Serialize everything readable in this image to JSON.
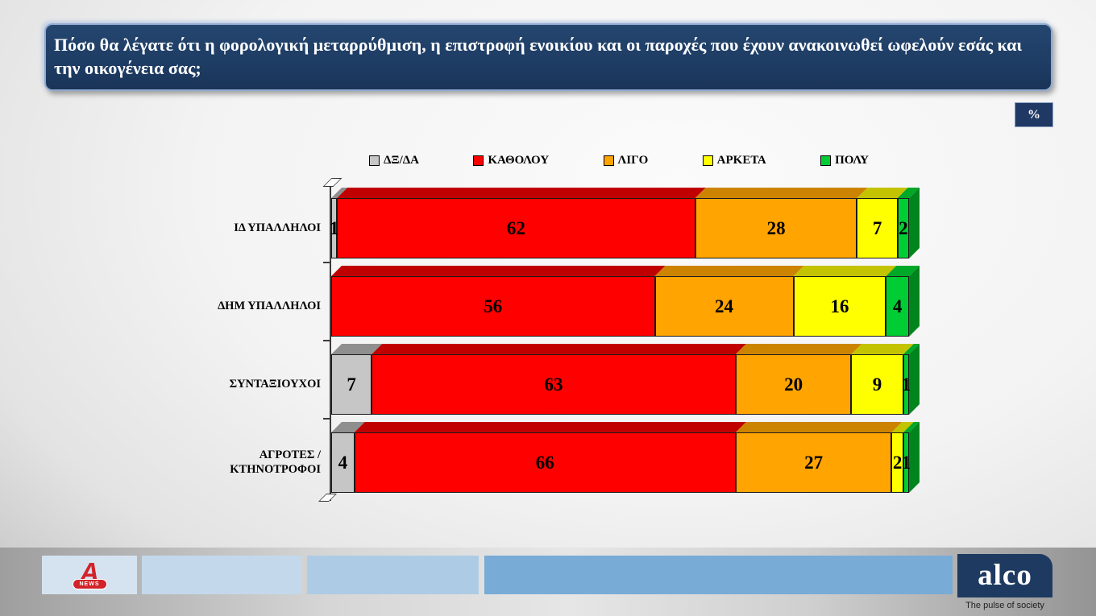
{
  "title": "Πόσο θα λέγατε ότι η φορολογική μεταρρύθμιση, η επιστροφή ενοικίου και  οι παροχές που έχουν ανακοινωθεί ωφελούν εσάς  και την οικογένεια σας;",
  "percent_badge": "%",
  "chart_data": {
    "type": "bar",
    "stacked": true,
    "orientation": "horizontal",
    "unit": "%",
    "title": "Πόσο θα λέγατε ότι η φορολογική μεταρρύθμιση, η επιστροφή ενοικίου και οι παροχές που έχουν ανακοινωθεί ωφελούν εσάς και την οικογένεια σας;",
    "xlabel": "",
    "ylabel": "",
    "xlim": [
      0,
      100
    ],
    "legend_position": "top",
    "value_labels": true,
    "categories": [
      "ΙΔ ΥΠΑΛΛΗΛΟΙ",
      "ΔΗΜ ΥΠΑΛΛΗΛΟΙ",
      "ΣΥΝΤΑΞΙΟΥΧΟΙ",
      "ΑΓΡΟΤΕΣ / ΚΤΗΝΟΤΡΟΦΟΙ"
    ],
    "series": [
      {
        "name": "ΔΞ/ΔΑ",
        "color": "#c6c6c6",
        "top_color": "#8f8f8f",
        "side_color": "#7c7c7c",
        "values": [
          1,
          0,
          7,
          4
        ]
      },
      {
        "name": "ΚΑΘΟΛΟΥ",
        "color": "#fe0000",
        "top_color": "#c00000",
        "side_color": "#a30000",
        "values": [
          62,
          56,
          63,
          66
        ]
      },
      {
        "name": "ΛΙΓΟ",
        "color": "#ffa400",
        "top_color": "#cc8400",
        "side_color": "#b27300",
        "values": [
          28,
          24,
          20,
          27
        ]
      },
      {
        "name": "ΑΡΚΕΤΑ",
        "color": "#ffff00",
        "top_color": "#c3c300",
        "side_color": "#ababab",
        "values": [
          7,
          16,
          9,
          2
        ]
      },
      {
        "name": "ΠΟΛΥ",
        "color": "#00cc33",
        "top_color": "#00a828",
        "side_color": "#00851c",
        "values": [
          2,
          4,
          1,
          1
        ]
      }
    ]
  },
  "footer": {
    "alpha_logo": {
      "letter": "A",
      "badge": "NEWS"
    },
    "alco_logo": {
      "text": "alco",
      "tagline": "The pulse of society"
    },
    "block_colors": [
      "#d5e3f1",
      "#c4d8eb",
      "#adcbe5",
      "#78abd6"
    ]
  },
  "colors": {
    "header_bg": "#1e3c64",
    "badge_bg": "#1f3864",
    "alco_bg": "#1e3a61",
    "alpha_red": "#d2232a"
  }
}
